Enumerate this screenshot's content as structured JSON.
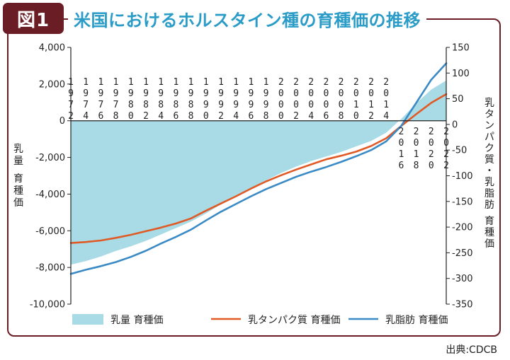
{
  "badge": "図1",
  "title": "米国におけるホルスタイン種の育種価の推移",
  "source": "出典:CDCB",
  "colors": {
    "milk": "#a8dbe6",
    "protein": "#e05a26",
    "fat": "#3a8ac6",
    "frame": "#6b1d25",
    "title": "#2a9cc7"
  },
  "chart_data": {
    "type": "area",
    "x": [
      1972,
      1974,
      1976,
      1978,
      1980,
      1982,
      1984,
      1986,
      1988,
      1990,
      1992,
      1994,
      1996,
      1998,
      2000,
      2002,
      2004,
      2006,
      2008,
      2010,
      2012,
      2014,
      2016,
      2018,
      2020,
      2022
    ],
    "x_tick_labels_top": [
      "1972",
      "1974",
      "1976",
      "1978",
      "1980",
      "1982",
      "1984",
      "1986",
      "1988",
      "1990",
      "1992",
      "1994",
      "1996",
      "1998",
      "2000",
      "2002",
      "2004",
      "2006",
      "2008",
      "2010",
      "2012",
      "2014"
    ],
    "x_tick_labels_bottom": [
      "2016",
      "2018",
      "2020",
      "2022"
    ],
    "y_left": {
      "ylim": [
        -10000,
        4000
      ],
      "ticks": [
        "4,000",
        "2,000",
        "0",
        "-2,000",
        "-4,000",
        "-6,000",
        "-8,000",
        "-10,000"
      ],
      "label": "乳量 育種価"
    },
    "y_right": {
      "ylim": [
        -350,
        150
      ],
      "ticks": [
        "150",
        "100",
        "50",
        "0",
        "-50",
        "-100",
        "-150",
        "-200",
        "-250",
        "-300",
        "-350"
      ],
      "label": "乳タンパク質・乳脂肪 育種価"
    },
    "series": [
      {
        "name": "乳量 育種価",
        "axis": "left",
        "kind": "area",
        "values": [
          -7850,
          -7650,
          -7400,
          -7100,
          -6850,
          -6550,
          -6200,
          -5850,
          -5500,
          -5050,
          -4550,
          -4150,
          -3700,
          -3250,
          -2850,
          -2500,
          -2200,
          -1950,
          -1700,
          -1400,
          -1100,
          -650,
          100,
          950,
          1700,
          2200
        ]
      },
      {
        "name": "乳タンパク質 育種価",
        "axis": "right",
        "kind": "line",
        "values": [
          -231,
          -229,
          -226,
          -221,
          -215,
          -208,
          -201,
          -193,
          -183,
          -168,
          -154,
          -140,
          -125,
          -111,
          -99,
          -88,
          -78,
          -68,
          -61,
          -53,
          -42,
          -27,
          -3,
          20,
          42,
          59
        ]
      },
      {
        "name": "乳脂肪 育種価",
        "axis": "right",
        "kind": "line",
        "values": [
          -291,
          -283,
          -276,
          -268,
          -258,
          -246,
          -232,
          -219,
          -205,
          -187,
          -170,
          -155,
          -140,
          -126,
          -114,
          -102,
          -92,
          -83,
          -73,
          -62,
          -50,
          -33,
          -3,
          42,
          87,
          119
        ]
      }
    ],
    "grid": false,
    "legend_position": "bottom"
  }
}
